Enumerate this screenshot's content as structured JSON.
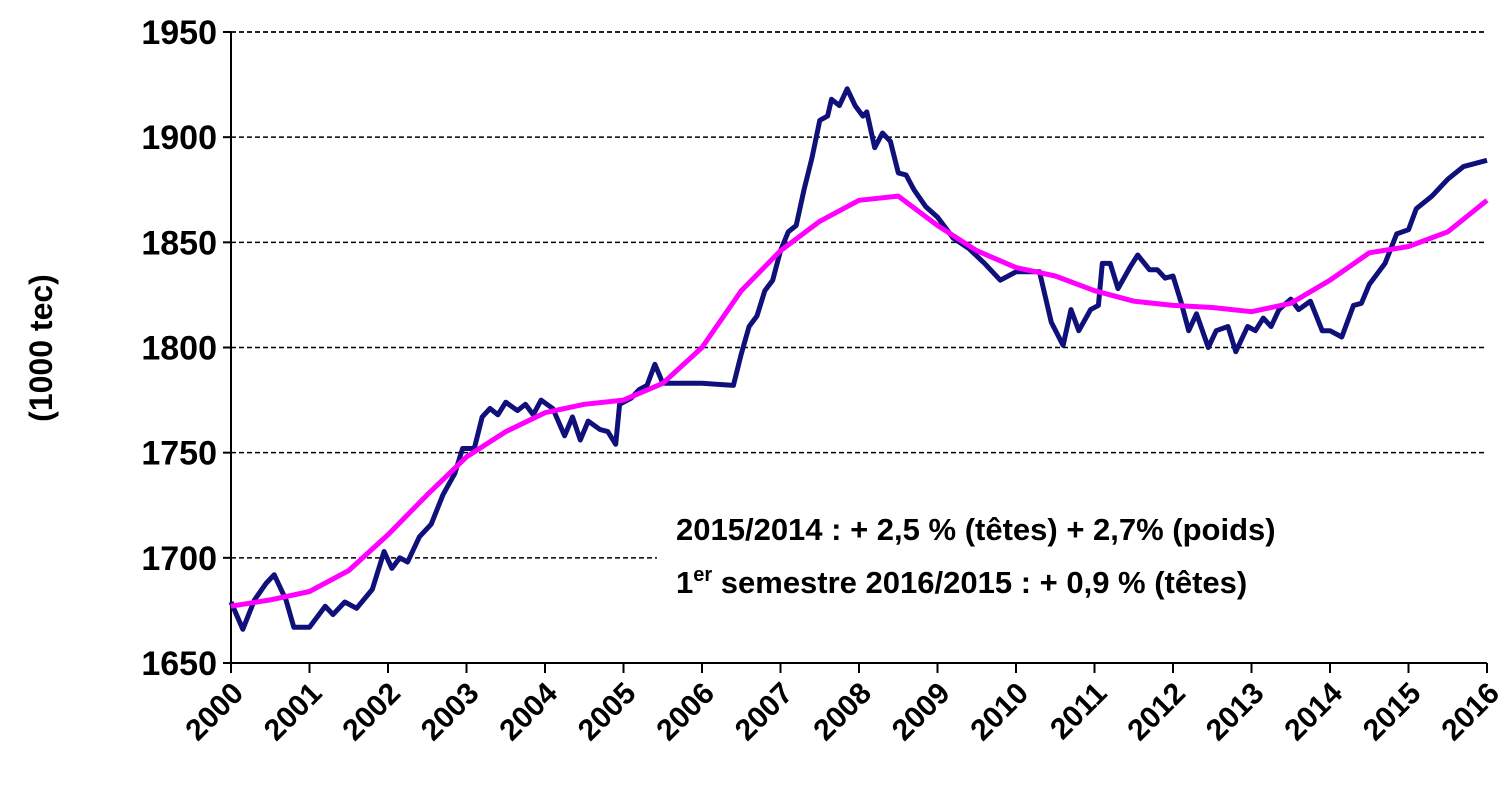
{
  "chart_data": {
    "type": "line",
    "ylabel": "(1000 tec)",
    "xlim": [
      2000,
      2016
    ],
    "xticks": [
      2000,
      2001,
      2002,
      2003,
      2004,
      2005,
      2006,
      2007,
      2008,
      2009,
      2010,
      2011,
      2012,
      2013,
      2014,
      2015,
      2016
    ],
    "ylim": [
      1650,
      1950
    ],
    "yticks": [
      1650,
      1700,
      1750,
      1800,
      1850,
      1900,
      1950
    ],
    "grid": true,
    "annotations": [
      {
        "text": "2015/2014 : + 2,5 % (têtes) + 2,7% (poids)"
      },
      {
        "prefix": "1",
        "sup": "er",
        "text": " semestre 2016/2015 : + 0,9 % (têtes)"
      }
    ],
    "series": [
      {
        "color": "#10107a",
        "x": [
          2000.0,
          2000.15,
          2000.3,
          2000.45,
          2000.55,
          2000.7,
          2000.8,
          2001.0,
          2001.2,
          2001.3,
          2001.45,
          2001.6,
          2001.8,
          2001.95,
          2002.05,
          2002.15,
          2002.25,
          2002.4,
          2002.55,
          2002.7,
          2002.85,
          2002.95,
          2003.1,
          2003.2,
          2003.3,
          2003.4,
          2003.5,
          2003.65,
          2003.75,
          2003.85,
          2003.95,
          2004.1,
          2004.25,
          2004.35,
          2004.45,
          2004.55,
          2004.7,
          2004.8,
          2004.9,
          2004.95,
          2005.1,
          2005.2,
          2005.3,
          2005.4,
          2005.5,
          2006.0,
          2006.4,
          2006.5,
          2006.6,
          2006.7,
          2006.8,
          2006.9,
          2007.0,
          2007.1,
          2007.2,
          2007.3,
          2007.4,
          2007.5,
          2007.6,
          2007.65,
          2007.75,
          2007.85,
          2007.95,
          2008.05,
          2008.1,
          2008.2,
          2008.3,
          2008.4,
          2008.5,
          2008.6,
          2008.7,
          2008.85,
          2009.0,
          2009.2,
          2009.4,
          2009.6,
          2009.8,
          2010.0,
          2010.3,
          2010.45,
          2010.6,
          2010.7,
          2010.8,
          2010.95,
          2011.05,
          2011.1,
          2011.2,
          2011.3,
          2011.45,
          2011.55,
          2011.7,
          2011.8,
          2011.9,
          2012.0,
          2012.1,
          2012.2,
          2012.3,
          2012.45,
          2012.55,
          2012.7,
          2012.8,
          2012.95,
          2013.05,
          2013.15,
          2013.25,
          2013.35,
          2013.5,
          2013.6,
          2013.75,
          2013.9,
          2014.0,
          2014.15,
          2014.3,
          2014.4,
          2014.5,
          2014.7,
          2014.85,
          2015.0,
          2015.1,
          2015.3,
          2015.5,
          2015.7,
          2016.0
        ],
        "values": [
          1679,
          1666,
          1680,
          1688,
          1692,
          1680,
          1667,
          1667,
          1677,
          1673,
          1679,
          1676,
          1685,
          1703,
          1695,
          1700,
          1698,
          1710,
          1716,
          1730,
          1740,
          1752,
          1752,
          1767,
          1771,
          1768,
          1774,
          1770,
          1773,
          1768,
          1775,
          1771,
          1758,
          1767,
          1756,
          1765,
          1761,
          1760,
          1754,
          1773,
          1776,
          1780,
          1782,
          1792,
          1783,
          1783,
          1782,
          1797,
          1810,
          1815,
          1827,
          1832,
          1846,
          1855,
          1858,
          1875,
          1890,
          1908,
          1910,
          1918,
          1915,
          1923,
          1915,
          1910,
          1912,
          1895,
          1902,
          1898,
          1883,
          1882,
          1875,
          1867,
          1862,
          1852,
          1847,
          1840,
          1832,
          1836,
          1836,
          1812,
          1801,
          1818,
          1808,
          1818,
          1820,
          1840,
          1840,
          1828,
          1838,
          1844,
          1837,
          1837,
          1833,
          1834,
          1822,
          1808,
          1816,
          1800,
          1808,
          1810,
          1798,
          1810,
          1808,
          1814,
          1810,
          1818,
          1823,
          1818,
          1822,
          1808,
          1808,
          1805,
          1820,
          1821,
          1830,
          1840,
          1854,
          1856,
          1866,
          1872,
          1880,
          1886,
          1889
        ]
      },
      {
        "color": "#ff00ff",
        "x": [
          2000,
          2000.5,
          2001,
          2001.5,
          2002,
          2002.5,
          2003,
          2003.5,
          2004,
          2004.5,
          2005,
          2005.5,
          2006,
          2006.5,
          2007,
          2007.5,
          2008,
          2008.5,
          2009,
          2009.5,
          2010,
          2010.5,
          2011,
          2011.5,
          2012,
          2012.5,
          2013,
          2013.5,
          2014,
          2014.5,
          2015,
          2015.5,
          2016
        ],
        "values": [
          1677,
          1680,
          1684,
          1694,
          1711,
          1730,
          1748,
          1760,
          1769,
          1773,
          1775,
          1783,
          1800,
          1827,
          1846,
          1860,
          1870,
          1872,
          1858,
          1846,
          1838,
          1834,
          1827,
          1822,
          1820,
          1819,
          1817,
          1821,
          1832,
          1845,
          1848,
          1855,
          1870
        ]
      }
    ]
  }
}
